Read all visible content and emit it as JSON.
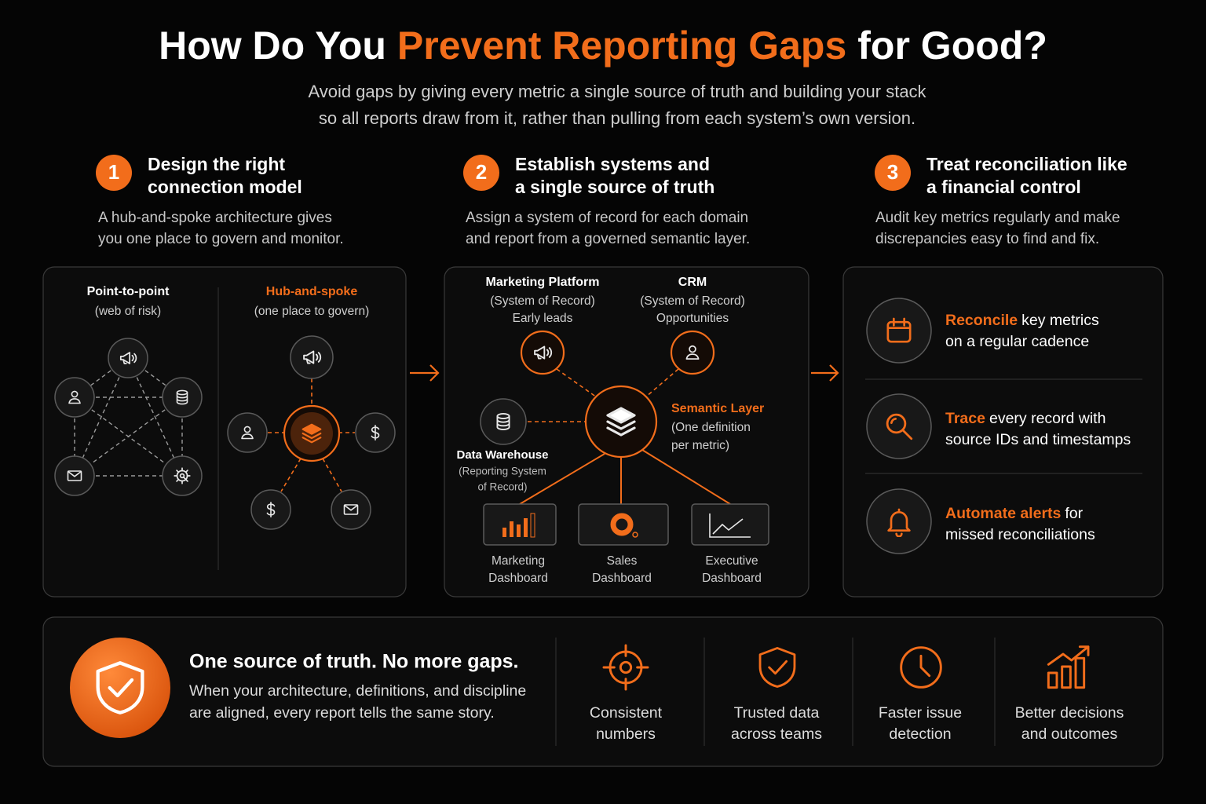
{
  "header": {
    "title": {
      "lead": "How Do You",
      "highlight": "Prevent Reporting Gaps",
      "tail": "for Good?"
    },
    "subtitle": [
      "Avoid gaps by giving every metric a single source of truth and building your stack",
      "so all reports draw from it, rather than pulling from each system’s own version."
    ]
  },
  "steps": [
    {
      "number": "1",
      "title": [
        "Design the right",
        "connection model"
      ],
      "description": [
        "A hub-and-spoke architecture gives",
        "you one place to govern and monitor."
      ]
    },
    {
      "number": "2",
      "title": [
        "Establish systems and",
        "a single source of truth"
      ],
      "description": [
        "Assign a system of record for each domain",
        "and report from a governed semantic layer."
      ]
    },
    {
      "number": "3",
      "title": [
        "Treat reconciliation like",
        "a financial control"
      ],
      "description": [
        "Audit key metrics regularly and make",
        "discrepancies easy to find and fix."
      ]
    }
  ],
  "connection_models": {
    "point_to_point": {
      "title": "Point-to-point",
      "subtitle": "(web of risk)"
    },
    "hub_and_spoke": {
      "title": "Hub-and-spoke",
      "subtitle": "(one place to govern)"
    }
  },
  "architecture": {
    "marketing_platform": {
      "name": "Marketing Platform",
      "lines": [
        "(System of Record)",
        "Early leads"
      ]
    },
    "crm": {
      "name": "CRM",
      "lines": [
        "(System of Record)",
        "Opportunities"
      ]
    },
    "semantic_layer": {
      "name": "Semantic Layer",
      "lines": [
        "(One definition",
        "per metric)"
      ]
    },
    "data_warehouse": {
      "name": "Data Warehouse",
      "lines": [
        "(Reporting System",
        "of Record)"
      ]
    },
    "dashboards": [
      [
        "Marketing",
        "Dashboard"
      ],
      [
        "Sales",
        "Dashboard"
      ],
      [
        "Executive",
        "Dashboard"
      ]
    ]
  },
  "controls": [
    {
      "highlight": "Reconcile",
      "text": [
        "key metrics",
        "on a regular cadence"
      ]
    },
    {
      "highlight": "Trace",
      "text": [
        "every record with",
        "source IDs and timestamps"
      ]
    },
    {
      "highlight": "Automate alerts",
      "text": [
        "for",
        "missed reconciliations"
      ]
    }
  ],
  "footer": {
    "headline": "One source of truth. No more gaps.",
    "text": [
      "When your architecture, definitions, and discipline",
      "are aligned, every report tells the same story."
    ],
    "benefits": [
      [
        "Consistent",
        "numbers"
      ],
      [
        "Trusted data",
        "across teams"
      ],
      [
        "Faster issue",
        "detection"
      ],
      [
        "Better decisions",
        "and outcomes"
      ]
    ]
  }
}
